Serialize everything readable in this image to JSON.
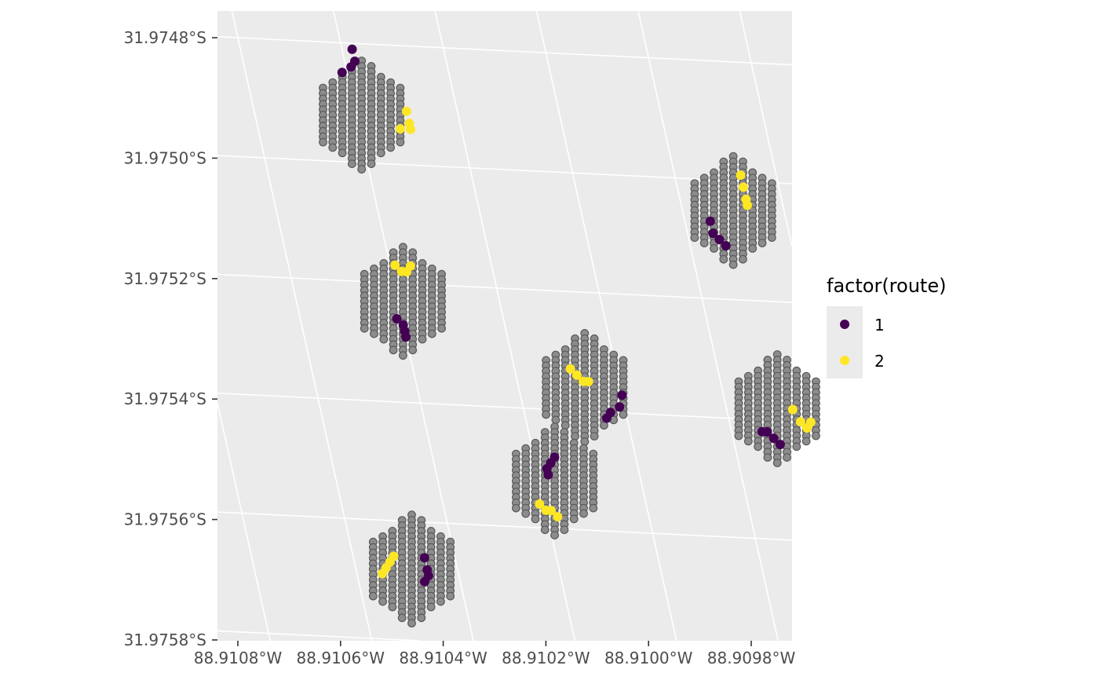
{
  "chart_data": {
    "type": "scatter",
    "title": "",
    "xlabel": "",
    "ylabel": "",
    "x_ticks": [
      "88.9108°W",
      "88.9106°W",
      "88.9104°W",
      "88.9102°W",
      "88.9100°W",
      "88.9098°W"
    ],
    "y_ticks": [
      "31.9748°S",
      "31.9750°S",
      "31.9752°S",
      "31.9754°S",
      "31.9756°S",
      "31.9758°S"
    ],
    "grid": true,
    "legend": {
      "title": "factor(route)",
      "placement": "right",
      "entries": [
        {
          "label": "1",
          "color": "#440154"
        },
        {
          "label": "2",
          "color": "#FDE725"
        }
      ]
    },
    "colors": {
      "panel_background": "#EBEBEB",
      "grid_line": "#FFFFFF",
      "background_point_fill": "#8C8C8C",
      "background_point_stroke": "#595959"
    },
    "clusters": [
      {
        "center_lon": -88.91059,
        "center_lat": -31.97492,
        "route_1": [
          [
            -88.91058,
            -31.97481
          ],
          [
            -88.91059,
            -31.97484
          ],
          [
            -88.91058,
            -31.97483
          ],
          [
            -88.91061,
            -31.97485
          ]
        ],
        "route_2": [
          [
            -88.9105,
            -31.97491
          ],
          [
            -88.9105,
            -31.97493
          ],
          [
            -88.9105,
            -31.97494
          ],
          [
            -88.91052,
            -31.97494
          ]
        ]
      },
      {
        "center_lon": -88.9099,
        "center_lat": -31.97505,
        "route_1": [
          [
            -88.90995,
            -31.97507
          ],
          [
            -88.90995,
            -31.97509
          ],
          [
            -88.90994,
            -31.9751
          ],
          [
            -88.90993,
            -31.97511
          ]
        ],
        "route_2": [
          [
            -88.90987,
            -31.97499
          ],
          [
            -88.90987,
            -31.97501
          ],
          [
            -88.90987,
            -31.97503
          ],
          [
            -88.90987,
            -31.97504
          ]
        ]
      },
      {
        "center_lon": -88.91059,
        "center_lat": -31.97523,
        "route_1": [
          [
            -88.91061,
            -31.97526
          ],
          [
            -88.9106,
            -31.97527
          ],
          [
            -88.9106,
            -31.97528
          ],
          [
            -88.9106,
            -31.97529
          ]
        ],
        "route_2": [
          [
            -88.91059,
            -31.97517
          ],
          [
            -88.91058,
            -31.97518
          ],
          [
            -88.91057,
            -31.97518
          ],
          [
            -88.91056,
            -31.97517
          ]
        ]
      },
      {
        "center_lon": -88.91027,
        "center_lat": -31.97536,
        "route_1": [
          [
            -88.9102,
            -31.97537
          ],
          [
            -88.91021,
            -31.97539
          ],
          [
            -88.91023,
            -31.9754
          ],
          [
            -88.91024,
            -31.97541
          ]
        ],
        "route_2": [
          [
            -88.91029,
            -31.97533
          ],
          [
            -88.91028,
            -31.97534
          ],
          [
            -88.91027,
            -31.97535
          ],
          [
            -88.91026,
            -31.97535
          ]
        ]
      },
      {
        "center_lon": -88.9099,
        "center_lat": -31.97538,
        "route_1": [
          [
            -88.90994,
            -31.97542
          ],
          [
            -88.90993,
            -31.97542
          ],
          [
            -88.90992,
            -31.97543
          ],
          [
            -88.90991,
            -31.97544
          ]
        ],
        "route_2": [
          [
            -88.90987,
            -31.97538
          ],
          [
            -88.90986,
            -31.9754
          ],
          [
            -88.90985,
            -31.97541
          ],
          [
            -88.90984,
            -31.9754
          ]
        ]
      },
      {
        "center_lon": -88.91037,
        "center_lat": -31.97552,
        "route_1": [
          [
            -88.91036,
            -31.97548
          ],
          [
            -88.91037,
            -31.97549
          ],
          [
            -88.91038,
            -31.9755
          ],
          [
            -88.91038,
            -31.97551
          ]
        ],
        "route_2": [
          [
            -88.91041,
            -31.97556
          ],
          [
            -88.9104,
            -31.97557
          ],
          [
            -88.91039,
            -31.97557
          ],
          [
            -88.91038,
            -31.97558
          ]
        ]
      },
      {
        "center_lon": -88.91069,
        "center_lat": -31.97568,
        "route_1": [
          [
            -88.91066,
            -31.97566
          ],
          [
            -88.91066,
            -31.97568
          ],
          [
            -88.91066,
            -31.97569
          ],
          [
            -88.91067,
            -31.9757
          ]
        ],
        "route_2": [
          [
            -88.91075,
            -31.97569
          ],
          [
            -88.91074,
            -31.97568
          ],
          [
            -88.91073,
            -31.97567
          ],
          [
            -88.91072,
            -31.97566
          ]
        ]
      }
    ]
  }
}
